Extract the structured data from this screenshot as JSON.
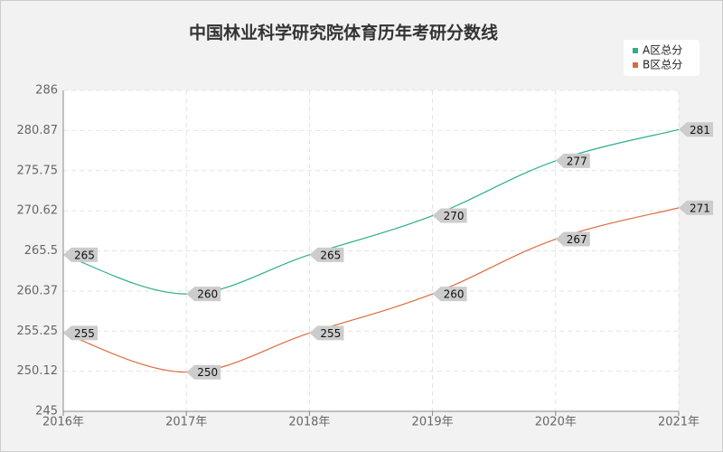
{
  "chart_data": {
    "type": "line",
    "title": "中国林业科学研究院体育历年考研分数线",
    "categories": [
      "2016年",
      "2017年",
      "2018年",
      "2019年",
      "2020年",
      "2021年"
    ],
    "series": [
      {
        "name": "A区总分",
        "color": "#2bae8c",
        "values": [
          265,
          260,
          265,
          270,
          277,
          281
        ]
      },
      {
        "name": "B区总分",
        "color": "#dd6b3d",
        "values": [
          255,
          250,
          255,
          260,
          267,
          271
        ]
      }
    ],
    "ylim": [
      245,
      286
    ],
    "yticks": [
      245,
      250.12,
      255.25,
      260.37,
      265.5,
      270.62,
      275.75,
      280.87,
      286
    ],
    "grid": true,
    "legend": "top-right"
  }
}
